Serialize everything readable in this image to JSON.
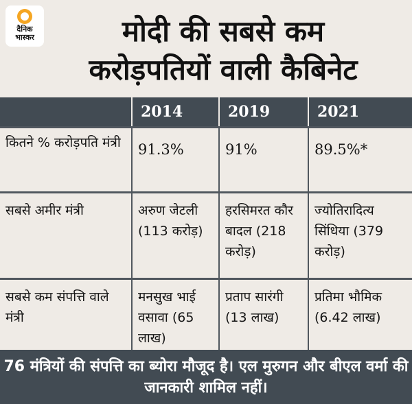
{
  "logo": {
    "text": "दैनिक भास्कर"
  },
  "headline": {
    "line1": "मोदी की सबसे कम",
    "line2": "करोड़पतियों वाली कैबिनेट"
  },
  "table": {
    "header": [
      "",
      "2014",
      "2019",
      "2021"
    ],
    "rows": [
      {
        "label": "कितने % करोड़पति मंत्री",
        "values": [
          "91.3%",
          "91%",
          "89.5%*"
        ]
      },
      {
        "label": "सबसे अमीर मंत्री",
        "values": [
          "अरुण जेटली (113 करोड़)",
          "हरसिमरत कौर बादल (218 करोड़)",
          "ज्योतिरादित्य सिंधिया (379 करोड़)"
        ]
      },
      {
        "label": "सबसे कम संपत्ति वाले मंत्री",
        "values": [
          "मनसुख भाई वसावा (65 लाख)",
          "प्रताप सारंगी (13 लाख)",
          "प्रतिमा भौमिक (6.42 लाख)"
        ]
      }
    ]
  },
  "footer": {
    "note": "76 मंत्रियों की संपत्ति का ब्योरा मौजूद है। एल मुरुगन और बीएल वर्मा की जानकारी शामिल नहीं।"
  },
  "colors": {
    "background": "#efebe6",
    "header_bar": "#424b53",
    "logo_sun": "#f5a623"
  }
}
